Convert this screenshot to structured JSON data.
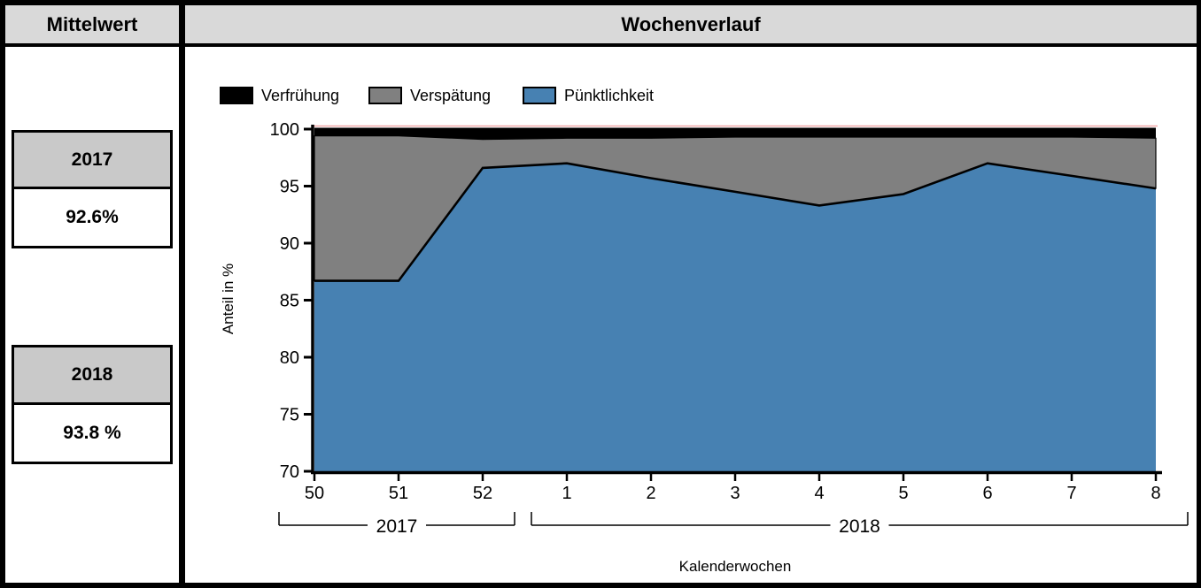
{
  "left_panel": {
    "header": "Mittelwert",
    "entries": [
      {
        "year": "2017",
        "value": "92.6%"
      },
      {
        "year": "2018",
        "value": "93.8 %"
      }
    ]
  },
  "right_panel": {
    "header": "Wochenverlauf",
    "legend": [
      {
        "label": "Verfrühung",
        "color": "#000000"
      },
      {
        "label": "Verspätung",
        "color": "#808080"
      },
      {
        "label": "Pünktlichkeit",
        "color": "#4781B2"
      }
    ]
  },
  "chart_data": {
    "type": "area",
    "stacked": true,
    "title": "Wochenverlauf",
    "xlabel": "Kalenderwochen",
    "ylabel": "Anteil in %",
    "ylim": [
      70,
      100
    ],
    "yticks": [
      70,
      75,
      80,
      85,
      90,
      95,
      100
    ],
    "grid": false,
    "legend_position": "top",
    "categories": [
      "50",
      "51",
      "52",
      "1",
      "2",
      "3",
      "4",
      "5",
      "6",
      "7",
      "8"
    ],
    "year_groups": [
      {
        "label": "2017",
        "from": 0,
        "to": 2
      },
      {
        "label": "2018",
        "from": 3,
        "to": 10
      }
    ],
    "series": [
      {
        "name": "Pünktlichkeit",
        "color": "#4781B2",
        "values": [
          86.7,
          86.7,
          96.6,
          97.0,
          95.7,
          94.5,
          93.3,
          94.3,
          97.0,
          95.9,
          94.8
        ]
      },
      {
        "name": "Verspätung",
        "color": "#808080",
        "values": [
          12.7,
          12.7,
          2.5,
          2.2,
          3.5,
          4.8,
          6.0,
          5.0,
          2.3,
          3.4,
          4.4
        ]
      },
      {
        "name": "Verfrühung",
        "color": "#000000",
        "values": [
          0.6,
          0.6,
          0.9,
          0.8,
          0.8,
          0.7,
          0.7,
          0.7,
          0.7,
          0.7,
          0.8
        ]
      }
    ],
    "reference_line": {
      "y": 100,
      "color": "#F2A9A9"
    }
  }
}
